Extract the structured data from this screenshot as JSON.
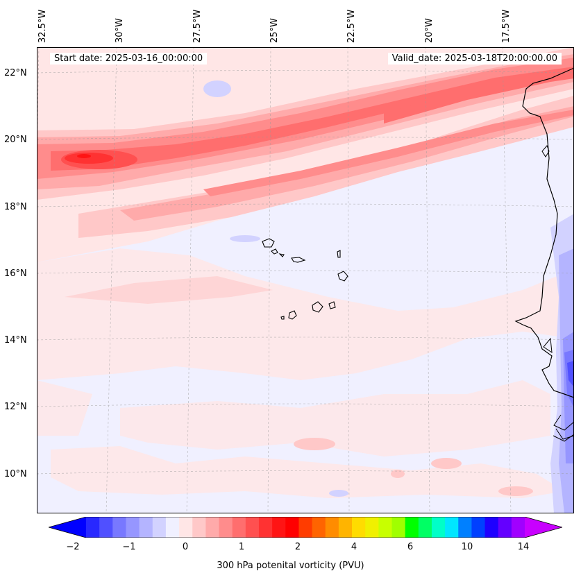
{
  "map": {
    "start_date": "Start date: 2025-03-16_00:00:00",
    "valid_date": "Valid_date: 2025-03-18T20:00:00.00",
    "lon_labels": [
      "32.5°W",
      "30°W",
      "27.5°W",
      "25°W",
      "22.5°W",
      "20°W",
      "17.5°W"
    ],
    "lat_labels": [
      "22°N",
      "20°N",
      "18°N",
      "16°N",
      "14°N",
      "12°N",
      "10°N"
    ],
    "variable": "300 hPa potenital vorticity (PVU)"
  },
  "colorbar": {
    "tick_labels": [
      "−2",
      "−1",
      "0",
      "1",
      "2",
      "4",
      "6",
      "10",
      "14"
    ],
    "levels": [
      -2,
      -1.75,
      -1.5,
      -1.25,
      -1,
      -0.75,
      -0.5,
      -0.25,
      0,
      0.25,
      0.5,
      0.75,
      1,
      1.25,
      1.5,
      1.75,
      2,
      2.5,
      3,
      3.5,
      4,
      4.5,
      5,
      5.5,
      6,
      7,
      8,
      9,
      10,
      11,
      12,
      13,
      14
    ],
    "colors": [
      "#0000ff",
      "#2828ff",
      "#5050ff",
      "#7878ff",
      "#9696ff",
      "#b4b4ff",
      "#d2d2ff",
      "#f0f0ff",
      "#ffe6e6",
      "#ffc8c8",
      "#ffaaaa",
      "#ff8c8c",
      "#ff6e6e",
      "#ff5050",
      "#ff3232",
      "#ff1414",
      "#ff0000",
      "#ff3c00",
      "#ff6400",
      "#ff8c00",
      "#ffb400",
      "#ffdc00",
      "#f0f000",
      "#c8ff00",
      "#a0ff00",
      "#00ff00",
      "#00ff64",
      "#00ffc8",
      "#00e6ff",
      "#0080ff",
      "#0040ff",
      "#1e00ff",
      "#6400ff",
      "#a000ff",
      "#c800ff"
    ]
  }
}
